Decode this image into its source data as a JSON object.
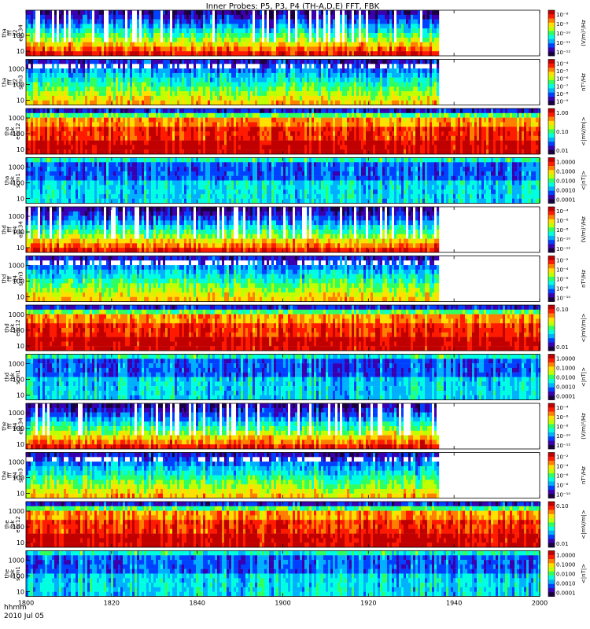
{
  "chart_data": {
    "type": "heatmap",
    "title": "Inner Probes: P5, P3, P4 (TH-A,D,E) FFT, FBK",
    "x_axis": {
      "label_line1": "hhmm",
      "label_line2": "2010 Jul 05",
      "range": [
        "1800",
        "2000"
      ],
      "ticks": [
        "1800",
        "1820",
        "1840",
        "1900",
        "1920",
        "1940",
        "2000"
      ]
    },
    "colormap": [
      "#1a0040",
      "#3a00b0",
      "#0040ff",
      "#00b0ff",
      "#00ffe0",
      "#30ff60",
      "#c0ff00",
      "#ffe000",
      "#ff8000",
      "#ff1a00",
      "#c00000"
    ],
    "panels": [
      {
        "label": [
          "tha",
          "fff",
          "32",
          "edc34"
        ],
        "kind": "fff_e",
        "yscale": "log",
        "yticks": [
          "10",
          "100"
        ],
        "coverage_end": "1936",
        "cbar_label": "(V/m)²/Hz",
        "cbar_ticks": [
          "10⁻⁸",
          "10⁻⁹",
          "10⁻¹⁰",
          "10⁻¹¹",
          "10⁻¹²"
        ]
      },
      {
        "label": [
          "tha",
          "fff",
          "32",
          "scm3"
        ],
        "kind": "fff_b",
        "yscale": "log",
        "yticks": [
          "10",
          "100",
          "1000"
        ],
        "coverage_end": "1936",
        "cbar_label": "nT²/Hz",
        "cbar_ticks": [
          "10⁻⁴",
          "10⁻⁵",
          "10⁻⁶",
          "10⁻⁷",
          "10⁻⁸",
          "10⁻⁹"
        ]
      },
      {
        "label": [
          "tha",
          "fbk",
          "edc12"
        ],
        "kind": "fbk_e",
        "yscale": "log",
        "yticks": [
          "10",
          "100",
          "1000"
        ],
        "coverage_end": "2000",
        "cbar_label": "<|mV/m|>",
        "cbar_ticks": [
          "1.00",
          "0.10",
          "0.01"
        ]
      },
      {
        "label": [
          "tha",
          "fbk",
          "scm1"
        ],
        "kind": "fbk_b",
        "yscale": "log",
        "yticks": [
          "10",
          "100",
          "1000"
        ],
        "coverage_end": "2000",
        "cbar_label": "<|nT|>",
        "cbar_ticks": [
          "1.0000",
          "0.1000",
          "0.0100",
          "0.0010",
          "0.0001"
        ]
      },
      {
        "label": [
          "thd",
          "fff",
          "64",
          "edc34"
        ],
        "kind": "fff_e",
        "yscale": "log",
        "yticks": [
          "10",
          "100",
          "1000"
        ],
        "coverage_end": "1936",
        "cbar_label": "(V/m)²/Hz",
        "cbar_ticks": [
          "10⁻⁴",
          "10⁻⁶",
          "10⁻⁸",
          "10⁻¹⁰",
          "10⁻¹²"
        ]
      },
      {
        "label": [
          "thd",
          "fff",
          "64",
          "scm3"
        ],
        "kind": "fff_b",
        "yscale": "log",
        "yticks": [
          "10",
          "100",
          "1000"
        ],
        "coverage_end": "1936",
        "cbar_label": "nT²/Hz",
        "cbar_ticks": [
          "10⁻²",
          "10⁻⁴",
          "10⁻⁶",
          "10⁻⁸",
          "10⁻¹⁰"
        ]
      },
      {
        "label": [
          "thd",
          "fbk",
          "edc12"
        ],
        "kind": "fbk_e",
        "yscale": "log",
        "yticks": [
          "10",
          "100",
          "1000"
        ],
        "coverage_end": "2000",
        "cbar_label": "<|mV/m|>",
        "cbar_ticks": [
          "0.10",
          "0.01"
        ]
      },
      {
        "label": [
          "thd",
          "fbk",
          "scm1"
        ],
        "kind": "fbk_b",
        "yscale": "log",
        "yticks": [
          "10",
          "100",
          "1000"
        ],
        "coverage_end": "2000",
        "cbar_label": "<|nT|>",
        "cbar_ticks": [
          "1.0000",
          "0.1000",
          "0.0100",
          "0.0010",
          "0.0001"
        ]
      },
      {
        "label": [
          "the",
          "fff",
          "64",
          "edc34"
        ],
        "kind": "fff_e",
        "yscale": "log",
        "yticks": [
          "10",
          "100",
          "1000"
        ],
        "coverage_end": "1936",
        "cbar_label": "(V/m)²/Hz",
        "cbar_ticks": [
          "10⁻⁴",
          "10⁻⁶",
          "10⁻⁸",
          "10⁻¹⁰",
          "10⁻¹²"
        ]
      },
      {
        "label": [
          "the",
          "fff",
          "64",
          "scm3"
        ],
        "kind": "fff_b",
        "yscale": "log",
        "yticks": [
          "10",
          "100",
          "1000"
        ],
        "coverage_end": "1936",
        "cbar_label": "nT²/Hz",
        "cbar_ticks": [
          "10⁻²",
          "10⁻⁴",
          "10⁻⁶",
          "10⁻⁸",
          "10⁻¹⁰"
        ]
      },
      {
        "label": [
          "the",
          "fbk",
          "edc12"
        ],
        "kind": "fbk_e",
        "yscale": "log",
        "yticks": [
          "10",
          "100",
          "1000"
        ],
        "coverage_end": "2000",
        "cbar_label": "<|mV/m|>",
        "cbar_ticks": [
          "0.10",
          "0.01"
        ]
      },
      {
        "label": [
          "the",
          "fbk",
          "scm1"
        ],
        "kind": "fbk_b",
        "yscale": "log",
        "yticks": [
          "10",
          "100",
          "1000"
        ],
        "coverage_end": "2000",
        "cbar_label": "<|nT|>",
        "cbar_ticks": [
          "1.0000",
          "0.1000",
          "0.0100",
          "0.0010",
          "0.0001"
        ]
      }
    ]
  }
}
